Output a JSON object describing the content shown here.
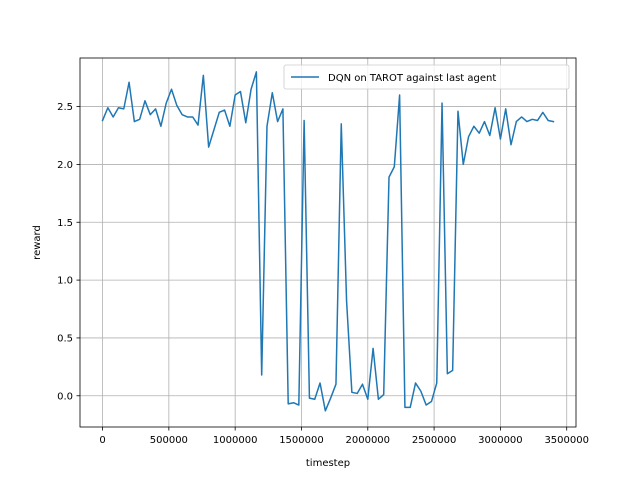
{
  "chart_data": {
    "type": "line",
    "xlabel": "timestep",
    "ylabel": "reward",
    "xlim": [
      -170000,
      3570000
    ],
    "ylim": [
      -0.27,
      2.92
    ],
    "xticks": [
      0,
      500000,
      1000000,
      1500000,
      2000000,
      2500000,
      3000000,
      3500000
    ],
    "xtick_labels": [
      "0",
      "500000",
      "1000000",
      "1500000",
      "2000000",
      "2500000",
      "3000000",
      "3500000"
    ],
    "yticks": [
      0.0,
      0.5,
      1.0,
      1.5,
      2.0,
      2.5
    ],
    "ytick_labels": [
      "0.0",
      "0.5",
      "1.0",
      "1.5",
      "2.0",
      "2.5"
    ],
    "grid": true,
    "legend_position": "top-right",
    "series": [
      {
        "name": "DQN on TAROT against last agent",
        "color": "#1f77b4",
        "x": [
          0,
          40000,
          80000,
          120000,
          160000,
          200000,
          240000,
          280000,
          320000,
          360000,
          400000,
          440000,
          480000,
          520000,
          560000,
          600000,
          640000,
          680000,
          720000,
          760000,
          800000,
          840000,
          880000,
          920000,
          960000,
          1000000,
          1040000,
          1080000,
          1120000,
          1160000,
          1200000,
          1240000,
          1280000,
          1320000,
          1360000,
          1400000,
          1440000,
          1480000,
          1520000,
          1560000,
          1600000,
          1640000,
          1680000,
          1720000,
          1760000,
          1800000,
          1840000,
          1880000,
          1920000,
          1960000,
          2000000,
          2040000,
          2080000,
          2120000,
          2160000,
          2200000,
          2240000,
          2280000,
          2320000,
          2360000,
          2400000,
          2440000,
          2480000,
          2520000,
          2560000,
          2600000,
          2640000,
          2680000,
          2720000,
          2760000,
          2800000,
          2840000,
          2880000,
          2920000,
          2960000,
          3000000,
          3040000,
          3080000,
          3120000,
          3160000,
          3200000,
          3240000,
          3280000,
          3320000,
          3360000,
          3400000
        ],
        "values": [
          2.38,
          2.49,
          2.41,
          2.49,
          2.48,
          2.71,
          2.37,
          2.39,
          2.55,
          2.43,
          2.48,
          2.33,
          2.53,
          2.65,
          2.51,
          2.43,
          2.41,
          2.41,
          2.34,
          2.77,
          2.15,
          2.3,
          2.45,
          2.47,
          2.33,
          2.6,
          2.63,
          2.36,
          2.65,
          2.8,
          0.18,
          2.33,
          2.62,
          2.37,
          2.48,
          -0.07,
          -0.06,
          -0.08,
          2.38,
          -0.02,
          -0.03,
          0.11,
          -0.13,
          -0.02,
          0.1,
          2.35,
          0.82,
          0.03,
          0.02,
          0.1,
          -0.03,
          0.41,
          -0.03,
          0.01,
          1.89,
          1.98,
          2.6,
          -0.1,
          -0.1,
          0.11,
          0.04,
          -0.08,
          -0.05,
          0.11,
          2.53,
          0.19,
          0.22,
          2.46,
          2.0,
          2.24,
          2.33,
          2.27,
          2.37,
          2.25,
          2.49,
          2.22,
          2.48,
          2.17,
          2.37,
          2.41,
          2.37,
          2.39,
          2.38,
          2.45,
          2.38,
          2.37
        ]
      }
    ]
  }
}
